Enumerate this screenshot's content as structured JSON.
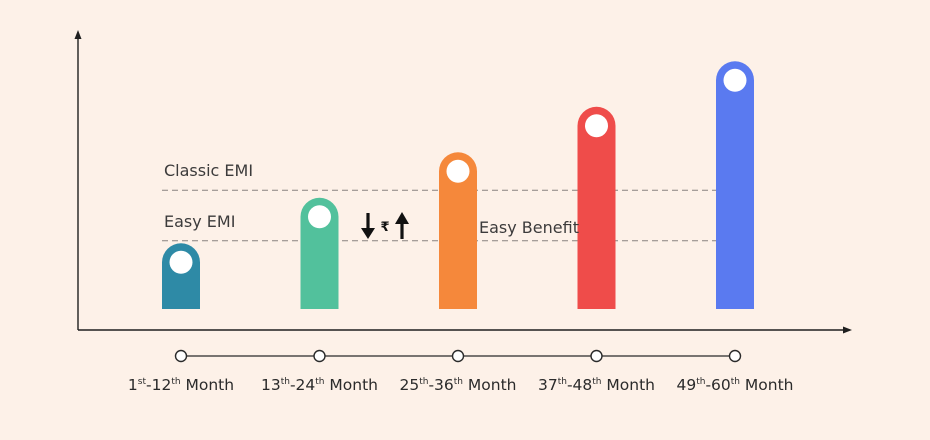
{
  "chart_data": {
    "type": "bar",
    "categories": [
      {
        "n1": "1",
        "s1": "st",
        "n2": "12",
        "s2": "th",
        "suffix": " Month"
      },
      {
        "n1": "13",
        "s1": "th",
        "n2": "24",
        "s2": "th",
        "suffix": " Month"
      },
      {
        "n1": "25",
        "s1": "th",
        "n2": "36",
        "s2": "th",
        "suffix": " Month"
      },
      {
        "n1": "37",
        "s1": "th",
        "n2": "48",
        "s2": "th",
        "suffix": " Month"
      },
      {
        "n1": "49",
        "s1": "th",
        "n2": "60",
        "s2": "th",
        "suffix": " Month"
      }
    ],
    "values": [
      1.3,
      2.2,
      3.1,
      4.0,
      4.9
    ],
    "colors": [
      "#2e8aa6",
      "#52c19c",
      "#f5883b",
      "#ef4c4a",
      "#5a7af0"
    ],
    "ylim": [
      0,
      5.4
    ],
    "reference_lines": [
      {
        "label": "Classic EMI",
        "value": 2.35
      },
      {
        "label": "Easy EMI",
        "value": 1.35
      }
    ],
    "annotations": {
      "easy_benefit": "Easy Benefit",
      "rupee_symbol": "₹"
    },
    "title": "",
    "xlabel": "",
    "ylabel": "",
    "grid": false
  }
}
